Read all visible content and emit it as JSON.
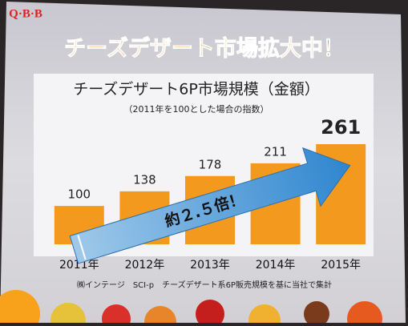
{
  "brand": "Q·B·B",
  "headline": "チーズデザート市場拡大中！",
  "chart_data": {
    "type": "bar",
    "title": "チーズデザート6P市場規模（金額）",
    "subtitle": "（2011年を100とした場合の指数）",
    "categories": [
      "2011年",
      "2012年",
      "2013年",
      "2014年",
      "2015年"
    ],
    "values": [
      100,
      138,
      178,
      211,
      261
    ],
    "color": "#f39a1e",
    "annotation": "約２.５倍！"
  },
  "source": "㈱インテージ　SCI-p　チーズデザート系6P販売規模を基に当社で集計"
}
